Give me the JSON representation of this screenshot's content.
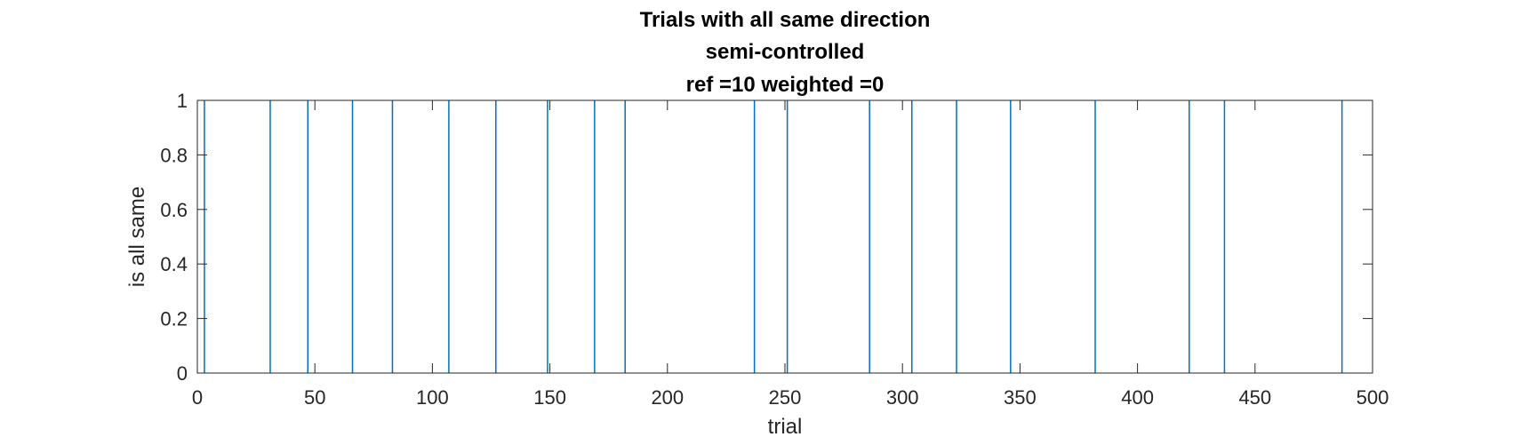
{
  "chart_data": {
    "type": "stem",
    "title_lines": [
      "Trials with all same direction",
      "semi-controlled",
      "ref =10 weighted =0"
    ],
    "xlabel": "trial",
    "ylabel": "is all same",
    "xlim": [
      0,
      500
    ],
    "ylim": [
      0,
      1
    ],
    "xticks": [
      "0",
      "50",
      "100",
      "150",
      "200",
      "250",
      "300",
      "350",
      "400",
      "450",
      "500"
    ],
    "yticks": [
      "0",
      "0.2",
      "0.4",
      "0.6",
      "0.8",
      "1"
    ],
    "x": [
      3,
      31,
      47,
      66,
      83,
      107,
      127,
      149,
      169,
      182,
      237,
      251,
      286,
      304,
      323,
      346,
      382,
      422,
      437,
      487
    ],
    "y": [
      1,
      1,
      1,
      1,
      1,
      1,
      1,
      1,
      1,
      1,
      1,
      1,
      1,
      1,
      1,
      1,
      1,
      1,
      1,
      1
    ],
    "grid": false,
    "colors": {
      "series": "#0072BD",
      "axes": "#262626",
      "title": "#000000"
    }
  }
}
